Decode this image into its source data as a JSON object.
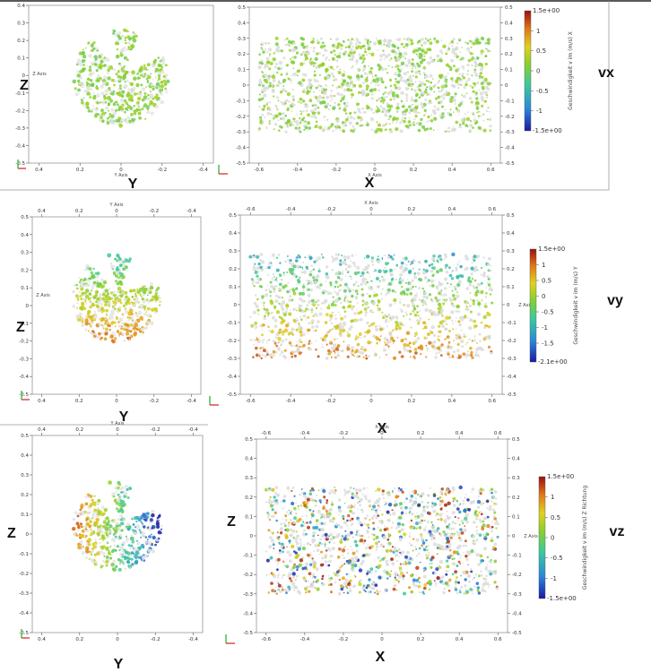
{
  "figure": {
    "panels": [
      {
        "row_label": "vx",
        "colorbar": {
          "title": "Geschwindigkeit v im (m/s) X",
          "max_label": "1.5e+00",
          "min_label": "-1.5e+00",
          "ticks": [
            "1",
            "0.5",
            "0",
            "-0.5",
            "-1"
          ],
          "tick_values": [
            1,
            0.5,
            0,
            -0.5,
            -1
          ],
          "range": [
            -1.5,
            1.5
          ],
          "colors": [
            "#1a1aa0",
            "#2a86d8",
            "#3cc8a0",
            "#86d02c",
            "#e0d020",
            "#e07818",
            "#9a1010"
          ]
        },
        "side_view": {
          "horizontal_label": "Y",
          "vertical_label": "Z",
          "axis_title_h": "Y Axis",
          "axis_title_v": "Z Axis"
        },
        "front_view": {
          "horizontal_label": "X",
          "axis_title_h": "X Axis"
        }
      },
      {
        "row_label": "vy",
        "colorbar": {
          "title": "Geschwindigkeit v im (m/s) Y",
          "max_label": "1.5e+00",
          "min_label": "-2.1e+00",
          "ticks": [
            "1",
            "0.5",
            "0",
            "-0.5",
            "-1",
            "-1.5"
          ],
          "tick_values": [
            1,
            0.5,
            0,
            -0.5,
            -1,
            -1.5
          ],
          "range": [
            -2.1,
            1.5
          ],
          "colors": [
            "#1a1aa0",
            "#2a86d8",
            "#3cc8a0",
            "#86d02c",
            "#e0d020",
            "#e07818",
            "#9a1010"
          ]
        },
        "side_view": {
          "horizontal_label": "Y",
          "vertical_label": "Z",
          "axis_title_h": "Y Axis",
          "axis_title_v": "Z Axis"
        },
        "front_view": {
          "horizontal_label": "X",
          "axis_title_h": "X Axis",
          "axis_title_v": "Z Axis"
        }
      },
      {
        "row_label": "vz",
        "colorbar": {
          "title": "Geschwindigkeit v im (m/s) Z Richtung",
          "max_label": "1.5e+00",
          "min_label": "-1.5e+00",
          "ticks": [
            "1",
            "0.5",
            "0",
            "-0.5",
            "-1"
          ],
          "tick_values": [
            1,
            0.5,
            0,
            -0.5,
            -1
          ],
          "range": [
            -1.5,
            1.5
          ],
          "colors": [
            "#1a1aa0",
            "#2a86d8",
            "#3cc8a0",
            "#86d02c",
            "#e0d020",
            "#e07818",
            "#9a1010"
          ]
        },
        "side_view": {
          "horizontal_label": "Y",
          "vertical_label": "Z",
          "axis_title_h": "Y Axis"
        },
        "front_view": {
          "horizontal_label": "X",
          "vertical_label": "Z",
          "axis_title_h": "X Axis",
          "axis_title_v": "Z Axis"
        }
      }
    ]
  },
  "chart_data": [
    {
      "type": "scatter",
      "title": "vx",
      "views": [
        "Y-Z side view",
        "X-Z front view"
      ],
      "side_view_axes": {
        "x_ticks": [
          0.4,
          0.2,
          0,
          -0.2,
          -0.4
        ],
        "y_ticks": [
          0.4,
          0.3,
          0.2,
          0.1,
          0,
          -0.1,
          -0.2,
          -0.3,
          -0.4,
          -0.5
        ],
        "xlim": [
          0.45,
          -0.45
        ],
        "ylim": [
          -0.5,
          0.4
        ]
      },
      "front_view_axes": {
        "x_ticks": [
          -0.6,
          -0.4,
          -0.2,
          0,
          0.2,
          0.4,
          0.6
        ],
        "y_ticks": [
          0.5,
          0.4,
          0.3,
          0.2,
          0.1,
          0,
          -0.1,
          -0.2,
          -0.3,
          -0.4,
          -0.5
        ],
        "xlim": [
          -0.65,
          0.65
        ],
        "ylim": [
          -0.5,
          0.5
        ]
      },
      "particle_region": {
        "x_range": [
          -0.6,
          0.6
        ],
        "z_range": [
          -0.3,
          0.3
        ]
      },
      "color_range": [
        -1.5,
        1.5
      ],
      "dominant_values": [
        0,
        0.3
      ]
    },
    {
      "type": "scatter",
      "title": "vy",
      "views": [
        "Y-Z side view",
        "X-Z front view"
      ],
      "side_view_axes": {
        "x_ticks": [
          0.4,
          0.2,
          0,
          -0.2,
          -0.4
        ],
        "y_ticks": [
          0.5,
          0.4,
          0.3,
          0.2,
          0.1,
          0,
          -0.1,
          -0.2,
          -0.3,
          -0.4,
          -0.5
        ],
        "xlim": [
          0.45,
          -0.45
        ],
        "ylim": [
          -0.5,
          0.5
        ]
      },
      "front_view_axes": {
        "x_ticks": [
          -0.6,
          -0.4,
          -0.2,
          0,
          0.2,
          0.4,
          0.6
        ],
        "y_ticks": [
          0.5,
          0.4,
          0.3,
          0.2,
          0.1,
          0,
          -0.1,
          -0.2,
          -0.3,
          -0.4,
          -0.5
        ],
        "xlim": [
          -0.65,
          0.65
        ],
        "ylim": [
          -0.5,
          0.5
        ]
      },
      "particle_region": {
        "x_range": [
          -0.6,
          0.6
        ],
        "z_range": [
          -0.3,
          0.28
        ]
      },
      "color_range": [
        -2.1,
        1.5
      ],
      "gradient": "high values (orange/red) near z = -0.3, low values (cyan/blue) toward top"
    },
    {
      "type": "scatter",
      "title": "vz",
      "views": [
        "Y-Z side view",
        "X-Z front view"
      ],
      "side_view_axes": {
        "x_ticks": [
          0.4,
          0.2,
          0,
          -0.2,
          -0.4
        ],
        "y_ticks": [
          0.5,
          0.4,
          0.3,
          0.2,
          0.1,
          0,
          -0.1,
          -0.2,
          -0.3,
          -0.4,
          -0.5
        ],
        "xlim": [
          0.45,
          -0.45
        ],
        "ylim": [
          -0.5,
          0.5
        ]
      },
      "front_view_axes": {
        "x_ticks": [
          -0.6,
          -0.4,
          -0.2,
          0,
          0.2,
          0.4,
          0.6
        ],
        "y_ticks": [
          0.5,
          0.4,
          0.3,
          0.2,
          0.1,
          0,
          -0.1,
          -0.2,
          -0.3,
          -0.4,
          -0.5
        ],
        "xlim": [
          -0.65,
          0.65
        ],
        "ylim": [
          -0.5,
          0.5
        ]
      },
      "particle_region": {
        "x_range": [
          -0.6,
          0.6
        ],
        "z_range": [
          -0.3,
          0.25
        ]
      },
      "color_range": [
        -1.5,
        1.5
      ]
    }
  ]
}
